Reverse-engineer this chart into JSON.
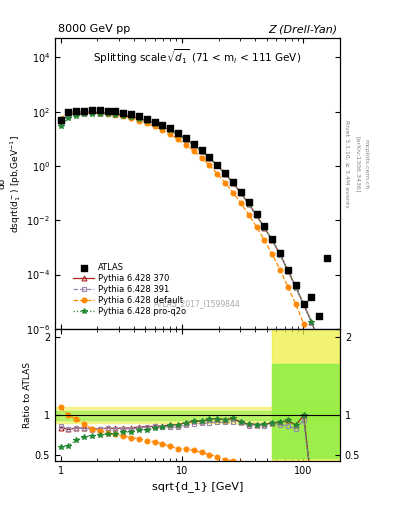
{
  "title_left": "8000 GeV pp",
  "title_right": "Z (Drell-Yan)",
  "inner_title": "Splitting scale$\\sqrt{d_1}$ (71 < m$_l$ < 111 GeV)",
  "ylabel_main": "d$\\sigma$/dsqrt(d$_1^-$) [pb,GeV$^{-1}$]",
  "ylabel_ratio": "Ratio to ATLAS",
  "xlabel": "sqrt{d_1} [GeV]",
  "atlas_label": "ATLAS_2017_I1599844",
  "x_data": [
    1.0,
    1.16,
    1.35,
    1.56,
    1.81,
    2.1,
    2.44,
    2.83,
    3.28,
    3.81,
    4.42,
    5.13,
    5.95,
    6.9,
    8.01,
    9.29,
    10.78,
    12.51,
    14.52,
    16.85,
    19.55,
    22.69,
    26.33,
    30.55,
    35.45,
    41.14,
    47.75,
    55.43,
    64.32,
    74.64,
    86.63,
    100.5,
    116.6,
    135.3,
    157.0
  ],
  "y_atlas": [
    50.0,
    95.0,
    105.0,
    110.0,
    115.0,
    112.0,
    108.0,
    102.0,
    92.0,
    80.0,
    67.0,
    55.0,
    43.0,
    33.0,
    24.0,
    16.5,
    10.5,
    6.5,
    3.8,
    2.1,
    1.1,
    0.55,
    0.25,
    0.11,
    0.045,
    0.017,
    0.006,
    0.002,
    0.0006,
    0.00015,
    4e-05,
    8e-06,
    1.5e-05,
    3e-06,
    0.0004
  ],
  "y_py370": [
    42.0,
    78.0,
    88.0,
    92.0,
    95.0,
    93.0,
    90.0,
    85.0,
    77.0,
    67.0,
    57.0,
    47.0,
    37.0,
    28.5,
    21.0,
    14.5,
    9.5,
    6.0,
    3.5,
    2.0,
    1.05,
    0.52,
    0.24,
    0.1,
    0.04,
    0.015,
    0.0053,
    0.0018,
    0.00055,
    0.00014,
    3.5e-05,
    8e-06,
    1.8e-06,
    3e-07,
    0
  ],
  "y_py391": [
    43.0,
    79.0,
    88.0,
    92.0,
    95.0,
    93.0,
    90.0,
    84.0,
    76.0,
    66.0,
    56.0,
    46.5,
    37.0,
    28.0,
    20.5,
    14.0,
    9.2,
    5.8,
    3.4,
    1.9,
    1.0,
    0.5,
    0.23,
    0.1,
    0.039,
    0.015,
    0.0052,
    0.0018,
    0.00053,
    0.00013,
    3.3e-05,
    7.5e-06,
    1.7e-06,
    3e-07,
    0
  ],
  "y_pydef": [
    55.0,
    95.0,
    100.0,
    98.0,
    95.0,
    90.0,
    84.0,
    77.0,
    68.0,
    57.0,
    47.0,
    37.0,
    28.5,
    21.0,
    14.5,
    9.5,
    6.0,
    3.6,
    2.0,
    1.05,
    0.52,
    0.24,
    0.105,
    0.043,
    0.016,
    0.0057,
    0.0018,
    0.00055,
    0.00015,
    3.5e-05,
    8e-06,
    1.5e-06,
    2.5e-07,
    4e-08,
    0
  ],
  "y_pyq2o": [
    30.0,
    58.0,
    72.0,
    80.0,
    85.0,
    84.0,
    82.0,
    78.0,
    72.0,
    63.0,
    54.0,
    45.0,
    36.0,
    28.0,
    21.0,
    14.5,
    9.5,
    6.0,
    3.5,
    2.0,
    1.05,
    0.52,
    0.24,
    0.1,
    0.04,
    0.015,
    0.0053,
    0.0018,
    0.00055,
    0.00014,
    3.5e-05,
    8e-06,
    1.8e-06,
    3e-07,
    0
  ],
  "n_mc": 34,
  "r_py370": [
    0.84,
    0.82,
    0.838,
    0.836,
    0.826,
    0.83,
    0.833,
    0.833,
    0.837,
    0.838,
    0.851,
    0.855,
    0.86,
    0.864,
    0.875,
    0.879,
    0.905,
    0.923,
    0.921,
    0.952,
    0.955,
    0.945,
    0.96,
    0.909,
    0.889,
    0.882,
    0.883,
    0.9,
    0.908,
    0.933,
    0.875,
    1.0,
    0.12,
    0.1
  ],
  "r_py391": [
    0.86,
    0.831,
    0.838,
    0.836,
    0.826,
    0.83,
    0.833,
    0.824,
    0.826,
    0.825,
    0.836,
    0.845,
    0.86,
    0.848,
    0.854,
    0.848,
    0.876,
    0.892,
    0.895,
    0.905,
    0.909,
    0.909,
    0.92,
    0.909,
    0.867,
    0.882,
    0.867,
    0.9,
    0.875,
    0.867,
    0.825,
    0.9375,
    0.113,
    0.1
  ],
  "r_pydef": [
    1.1,
    1.0,
    0.952,
    0.891,
    0.826,
    0.804,
    0.778,
    0.755,
    0.739,
    0.713,
    0.701,
    0.673,
    0.663,
    0.636,
    0.604,
    0.576,
    0.571,
    0.554,
    0.526,
    0.5,
    0.473,
    0.436,
    0.42,
    0.391,
    0.356,
    0.335,
    0.3,
    0.275,
    0.25,
    0.233,
    0.2,
    0.1875,
    0.0167,
    0.013
  ],
  "r_pyq2o": [
    0.6,
    0.61,
    0.686,
    0.727,
    0.739,
    0.75,
    0.759,
    0.765,
    0.783,
    0.788,
    0.806,
    0.818,
    0.837,
    0.848,
    0.875,
    0.879,
    0.905,
    0.923,
    0.921,
    0.952,
    0.955,
    0.945,
    0.96,
    0.909,
    0.889,
    0.882,
    0.883,
    0.9,
    0.917,
    0.933,
    0.875,
    1.0,
    0.12,
    0.1
  ],
  "color_py370": "#AA2222",
  "color_py391": "#9988AA",
  "color_pydef": "#FF8800",
  "color_pyq2o": "#228833",
  "xlim": [
    0.9,
    200.0
  ],
  "ylim_main": [
    1e-06,
    50000.0
  ],
  "ylim_ratio": [
    0.42,
    2.1
  ],
  "ratio_yticks": [
    0.5,
    1.0,
    2.0
  ],
  "ratio_yticklabels": [
    "0.5",
    "1",
    "2"
  ]
}
